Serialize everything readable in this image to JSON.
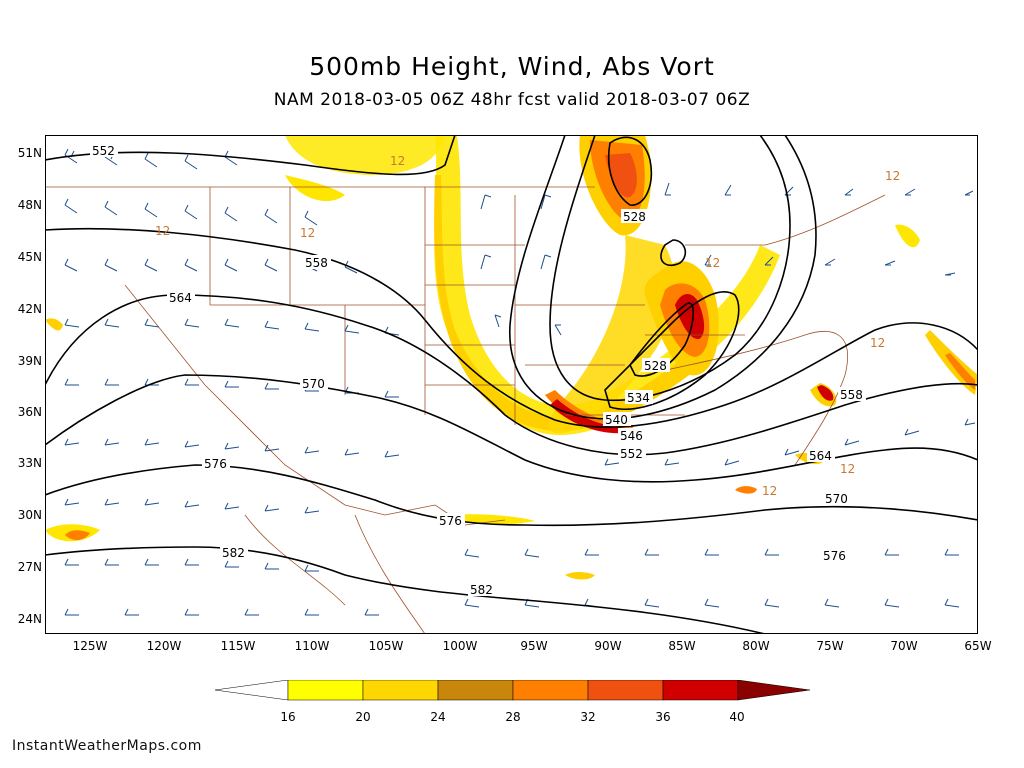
{
  "title": "500mb Height, Wind, Abs Vort",
  "subtitle": "NAM 2018-03-05 06Z 48hr fcst valid 2018-03-07 06Z",
  "credit": "InstantWeatherMaps.com",
  "lat_ticks": [
    "51N",
    "48N",
    "45N",
    "42N",
    "39N",
    "36N",
    "33N",
    "30N",
    "27N",
    "24N"
  ],
  "lon_ticks": [
    "125W",
    "120W",
    "115W",
    "110W",
    "105W",
    "100W",
    "95W",
    "90W",
    "85W",
    "80W",
    "75W",
    "70W",
    "65W"
  ],
  "colorbar": {
    "labels": [
      "16",
      "20",
      "24",
      "28",
      "32",
      "36",
      "40"
    ],
    "colors": [
      "#ffff00",
      "#ffd700",
      "#c8860a",
      "#ff8000",
      "#f05010",
      "#d00000",
      "#8b0000"
    ]
  },
  "height_contour_labels": {
    "c552w": "552",
    "c558w": "558",
    "c564w": "564",
    "c570w": "570",
    "c576w": "576",
    "c582w": "582",
    "c528n": "528",
    "c528s": "528",
    "c534": "534",
    "c540": "540",
    "c546": "546",
    "c552s": "552",
    "c558e": "558",
    "c564e": "564",
    "c570e": "570",
    "c576e": "576",
    "c582s": "582"
  },
  "vort_labels": [
    "12",
    "12",
    "12",
    "12",
    "12",
    "12",
    "12",
    "12"
  ],
  "colors": {
    "height_contour": "#000000",
    "wind_barb": "#1e4e8c",
    "borders": "#a0522d",
    "vort_contour": "#c87830"
  }
}
